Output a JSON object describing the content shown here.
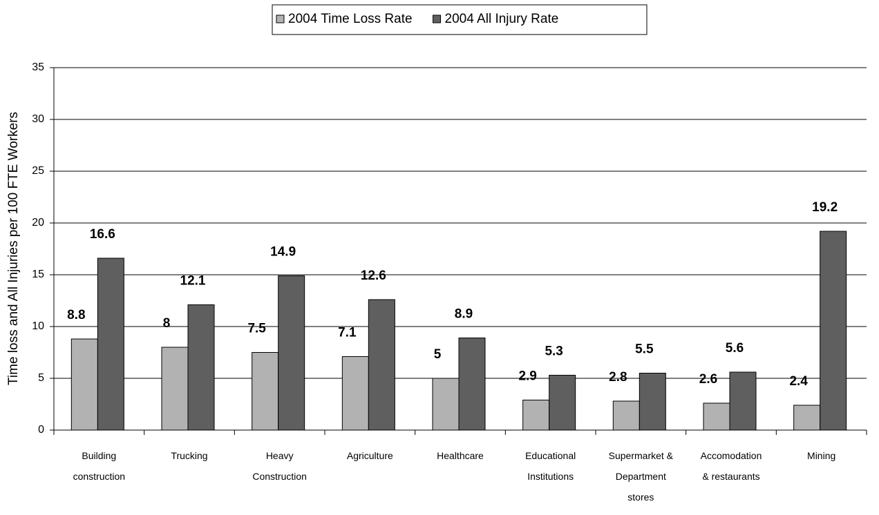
{
  "chart_data": {
    "type": "bar",
    "y_label": "Time loss and All Injuries per 100 FTE Workers",
    "categories": [
      "Building construction",
      "Trucking",
      "Heavy Construction",
      "Agriculture",
      "Healthcare",
      "Educational Institutions",
      "Supermarket & Department stores",
      "Accomodation & restaurants",
      "Mining"
    ],
    "series": [
      {
        "name": "2004 Time Loss Rate",
        "color": "#b2b2b2",
        "values": [
          8.8,
          8,
          7.5,
          7.1,
          5,
          2.9,
          2.8,
          2.6,
          2.4
        ]
      },
      {
        "name": "2004 All Injury Rate",
        "color": "#5f5f5f",
        "values": [
          16.6,
          12.1,
          14.9,
          12.6,
          8.9,
          5.3,
          5.5,
          5.6,
          19.2
        ]
      }
    ],
    "ylim": [
      0,
      35
    ],
    "yticks": [
      0,
      5,
      10,
      15,
      20,
      25,
      30,
      35
    ],
    "grid": true,
    "legend": "top"
  }
}
